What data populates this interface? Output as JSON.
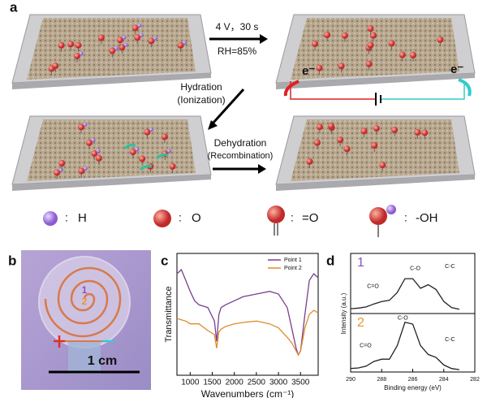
{
  "figure": {
    "panel_labels": [
      "a",
      "b",
      "c",
      "d"
    ],
    "a": {
      "condition_line1": "4 V，30 s",
      "condition_line2": "RH=85%",
      "hydration": "Hydration",
      "hydration_sub": "(Ionization)",
      "dehydration": "Dehydration",
      "dehydration_sub": "(Recombination)",
      "electron_left": "e⁻",
      "electron_right": "e⁻"
    },
    "legend": [
      {
        "sep": ":",
        "label": "H"
      },
      {
        "sep": ":",
        "label": "O"
      },
      {
        "sep": ":",
        "label": "=O"
      },
      {
        "sep": ":",
        "label": "-OH"
      }
    ],
    "b": {
      "point1": "1",
      "point2": "2",
      "scale": "1 cm"
    }
  },
  "chart_data": [
    {
      "type": "line",
      "ylabel": "Transmittance",
      "xlabel": "Wavenumbers (cm⁻¹)",
      "x": [
        700,
        800,
        900,
        1000,
        1100,
        1200,
        1400,
        1550,
        1600,
        1650,
        1700,
        1800,
        2000,
        2200,
        2500,
        2800,
        3000,
        3200,
        3300,
        3400,
        3450,
        3500,
        3600,
        3700,
        3800,
        3900
      ],
      "series": [
        {
          "name": "Point 1",
          "color": "#7a3f8f",
          "values": [
            75,
            78,
            70,
            62,
            55,
            52,
            50,
            40,
            25,
            45,
            50,
            52,
            55,
            58,
            60,
            62,
            60,
            50,
            35,
            20,
            15,
            18,
            45,
            70,
            75,
            72
          ]
        },
        {
          "name": "Point 2",
          "color": "#e08a2a",
          "values": [
            42,
            41,
            40,
            38,
            38,
            38,
            33,
            30,
            20,
            32,
            34,
            36,
            38,
            39,
            40,
            38,
            35,
            28,
            24,
            18,
            15,
            18,
            35,
            45,
            48,
            46
          ]
        }
      ],
      "xlim": [
        700,
        3900
      ],
      "ylim": [
        0,
        90
      ],
      "xticks": [
        1000,
        1500,
        2000,
        2500,
        3000,
        3500
      ],
      "legend": "upper right"
    },
    {
      "type": "line",
      "ylabel": "Intensity (a.u.)",
      "label": "1",
      "label_color": "#8a4fd0",
      "annotations": [
        "C-O",
        "C-C",
        "C=O"
      ],
      "x": [
        290,
        289.5,
        289,
        288.5,
        288,
        287.5,
        287,
        286.5,
        286,
        285.5,
        285,
        284.5,
        284,
        283.5,
        283
      ],
      "series": [
        {
          "name": null,
          "color": "#222",
          "values": [
            8,
            9,
            11,
            16,
            20,
            22,
            35,
            58,
            58,
            42,
            48,
            40,
            20,
            10,
            7
          ]
        }
      ],
      "xlim": [
        290,
        282
      ],
      "ylim": [
        0,
        100
      ]
    },
    {
      "type": "line",
      "xlabel": "Binding energy (eV)",
      "label": "2",
      "label_color": "#e8962a",
      "annotations": [
        "C-O",
        "C-C",
        "C=O"
      ],
      "x": [
        290,
        289.5,
        289,
        288.5,
        288,
        287.5,
        287,
        286.5,
        286,
        285.5,
        285,
        284.5,
        284,
        283.5,
        283
      ],
      "series": [
        {
          "name": null,
          "color": "#222",
          "values": [
            6,
            7,
            10,
            18,
            22,
            22,
            45,
            85,
            82,
            45,
            30,
            25,
            12,
            6,
            4
          ]
        }
      ],
      "xlim": [
        290,
        282
      ],
      "ylim": [
        0,
        100
      ],
      "xticks": [
        290,
        288,
        286,
        284,
        282
      ]
    }
  ]
}
